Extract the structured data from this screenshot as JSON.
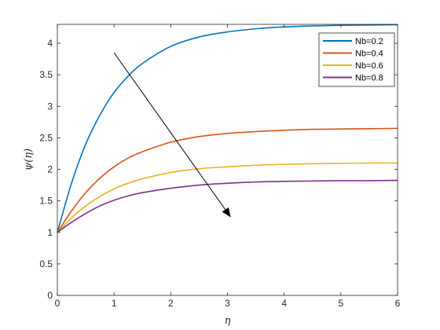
{
  "chart_data": {
    "type": "line",
    "title": "",
    "xlabel": "η",
    "ylabel": "ψ(η)",
    "xlim": [
      0,
      6
    ],
    "ylim": [
      0,
      4.3
    ],
    "xticks": [
      "0",
      "1",
      "2",
      "3",
      "4",
      "5",
      "6"
    ],
    "yticks": [
      "0",
      "0.5",
      "1",
      "1.5",
      "2",
      "2.5",
      "3",
      "3.5",
      "4"
    ],
    "grid": false,
    "legend_position": "top-right",
    "x": [
      0,
      0.25,
      0.5,
      0.75,
      1,
      1.25,
      1.5,
      2,
      2.5,
      3,
      3.5,
      4,
      4.5,
      5,
      5.5,
      6
    ],
    "series": [
      {
        "name": "Nb=0.2",
        "color": "#0072BD",
        "values": [
          1.0,
          1.78,
          2.4,
          2.86,
          3.22,
          3.48,
          3.68,
          3.95,
          4.1,
          4.18,
          4.23,
          4.26,
          4.275,
          4.285,
          4.29,
          4.295
        ]
      },
      {
        "name": "Nb=0.4",
        "color": "#D95319",
        "values": [
          1.0,
          1.34,
          1.63,
          1.86,
          2.04,
          2.18,
          2.28,
          2.43,
          2.52,
          2.57,
          2.6,
          2.62,
          2.635,
          2.64,
          2.645,
          2.65
        ]
      },
      {
        "name": "Nb=0.6",
        "color": "#EDB120",
        "values": [
          1.0,
          1.23,
          1.42,
          1.57,
          1.69,
          1.78,
          1.85,
          1.95,
          2.01,
          2.04,
          2.065,
          2.08,
          2.09,
          2.095,
          2.1,
          2.1
        ]
      },
      {
        "name": "Nb=0.8",
        "color": "#7E2F8E",
        "values": [
          1.0,
          1.16,
          1.3,
          1.42,
          1.51,
          1.58,
          1.63,
          1.7,
          1.75,
          1.78,
          1.8,
          1.81,
          1.815,
          1.82,
          1.82,
          1.825
        ]
      }
    ],
    "annotations": [
      {
        "type": "arrow",
        "from": [
          1.0,
          3.85
        ],
        "to": [
          3.05,
          1.25
        ],
        "color": "#000000"
      }
    ]
  }
}
